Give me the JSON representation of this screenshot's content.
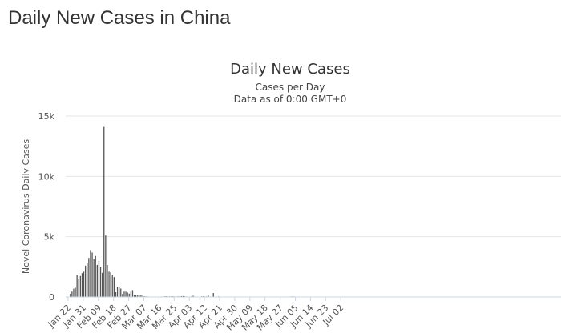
{
  "page": {
    "heading": "Daily New Cases in China"
  },
  "chart_data": {
    "type": "bar",
    "title": "Daily New Cases",
    "subtitle_lines": [
      "Cases per Day",
      "Data as of 0:00 GMT+0"
    ],
    "xlabel": "",
    "ylabel": "Novel Coronavirus Daily Cases",
    "ylim": [
      0,
      15000
    ],
    "y_ticks": [
      0,
      5000,
      10000,
      15000
    ],
    "y_tick_labels": [
      "0",
      "5k",
      "10k",
      "15k"
    ],
    "x_tick_labels": [
      "Jan 22",
      "Jan 31",
      "Feb 09",
      "Feb 18",
      "Feb 27",
      "Mar 07",
      "Mar 16",
      "Mar 25",
      "Apr 03",
      "Apr 12",
      "Apr 21",
      "Apr 30",
      "May 09",
      "May 18",
      "May 27",
      "Jun 05",
      "Jun 14",
      "Jun 23",
      "Jul 02"
    ],
    "x_start_date": "Jan 22",
    "grid": true,
    "series": [
      {
        "color": "#555555",
        "values": [
          0,
          260,
          450,
          690,
          770,
          1800,
          1470,
          1740,
          1980,
          2100,
          2600,
          2830,
          3240,
          3890,
          3690,
          3140,
          3400,
          2660,
          3000,
          2500,
          2000,
          14100,
          5100,
          2650,
          2100,
          2050,
          1850,
          1650,
          400,
          850,
          800,
          700,
          250,
          450,
          440,
          370,
          280,
          440,
          570,
          200,
          130,
          130,
          120,
          140,
          100,
          60,
          50,
          40,
          20,
          30,
          30,
          20,
          20,
          20,
          30,
          40,
          40,
          50,
          60,
          40,
          50,
          50,
          60,
          40,
          40,
          50,
          60,
          70,
          80,
          50,
          40,
          30,
          30,
          50,
          100,
          40,
          30,
          30,
          30,
          50,
          60,
          40,
          50,
          110,
          30,
          30,
          30,
          20,
          20,
          50,
          10,
          20,
          30,
          20,
          20,
          20,
          10,
          10,
          10,
          10,
          20,
          10,
          10,
          10,
          10,
          10,
          20,
          10,
          10,
          10,
          10,
          10,
          10,
          10,
          10,
          10,
          10,
          10,
          10,
          10,
          10,
          10,
          10,
          10,
          10,
          20,
          10,
          10,
          20,
          10,
          20,
          30,
          40,
          50,
          40,
          30,
          20,
          20,
          20,
          20,
          20,
          10,
          10,
          10,
          10,
          10,
          10,
          10,
          10,
          10,
          10,
          10,
          10,
          10,
          10,
          10,
          10,
          10,
          10,
          10,
          10,
          10,
          10,
          10,
          10,
          10
        ]
      }
    ],
    "annotations": [
      {
        "x_label": "Apr 17",
        "value": 325
      }
    ]
  }
}
